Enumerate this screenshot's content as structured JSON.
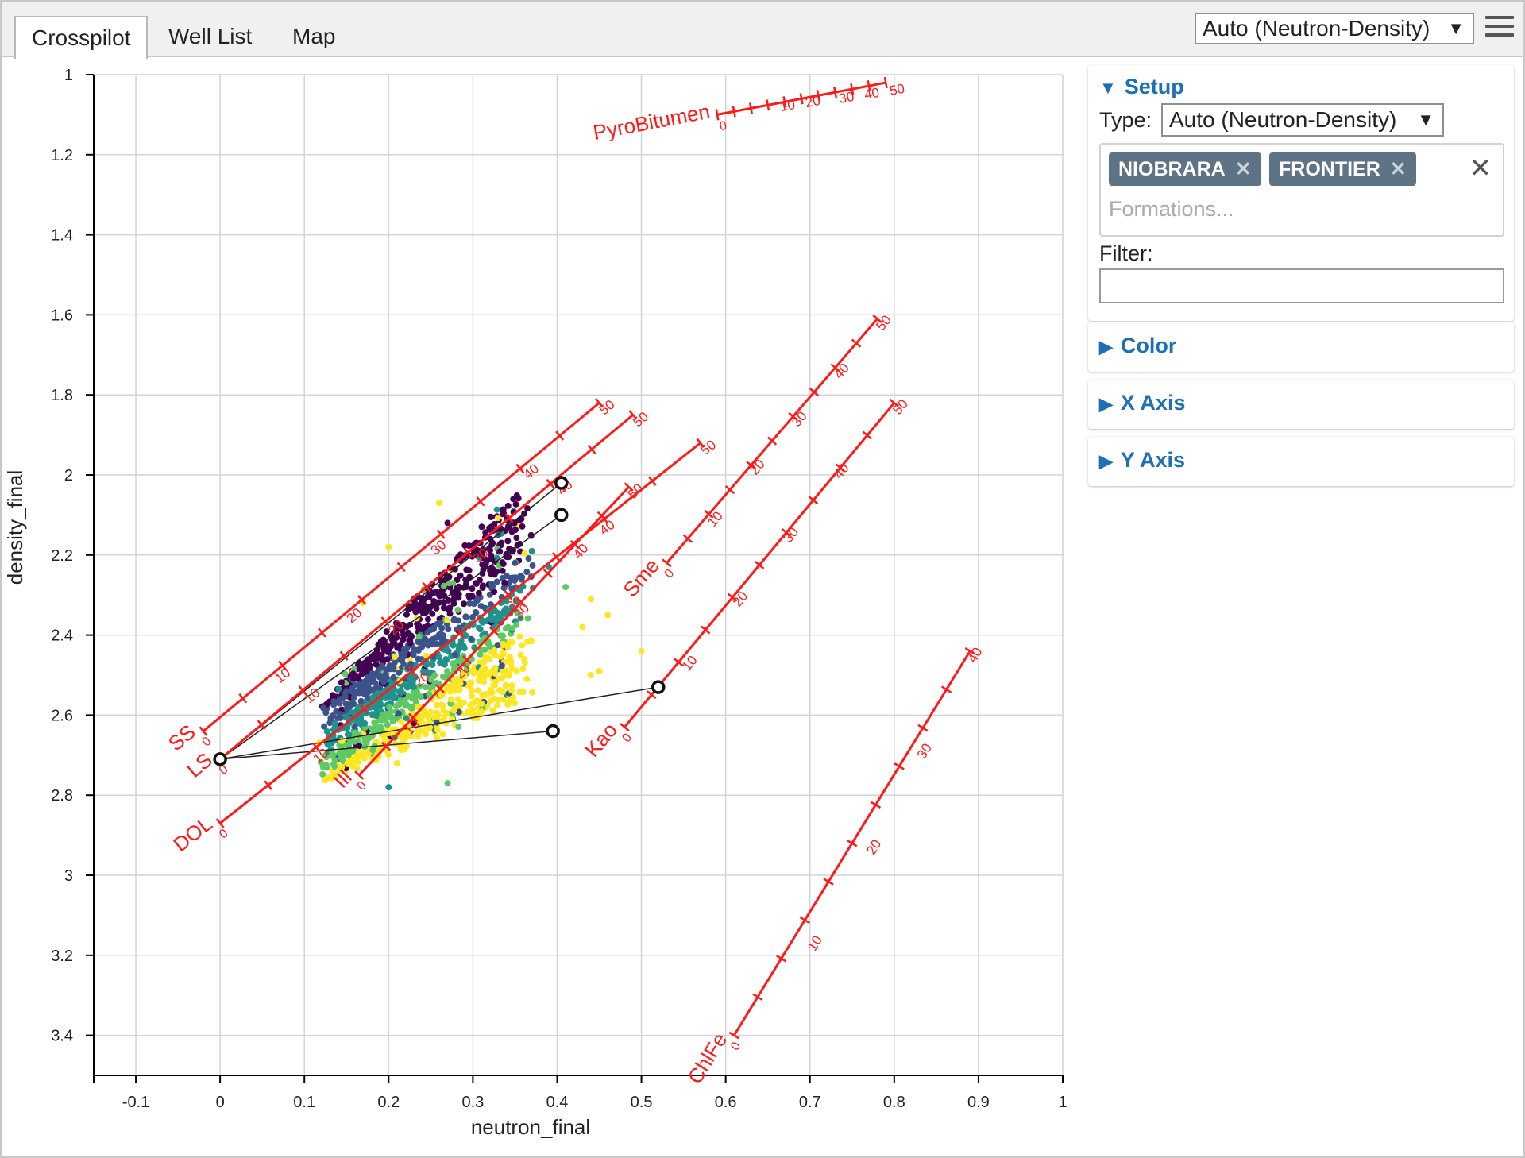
{
  "tabs": [
    {
      "label": "Crosspilot"
    },
    {
      "label": "Well List"
    },
    {
      "label": "Map"
    }
  ],
  "top_select": {
    "value": "Auto (Neutron-Density)"
  },
  "panel": {
    "setup": {
      "title": "Setup",
      "type_label": "Type:",
      "type_value": "Auto (Neutron-Density)",
      "formations": [
        "NIOBRARA",
        "FRONTIER"
      ],
      "formations_placeholder": "Formations...",
      "filter_label": "Filter:",
      "filter_value": ""
    },
    "color": {
      "title": "Color"
    },
    "x_axis": {
      "title": "X Axis"
    },
    "y_axis": {
      "title": "Y Axis"
    }
  },
  "chart_data": {
    "type": "scatter",
    "xlabel": "neutron_final",
    "ylabel": "density_final",
    "xlim": [
      -0.15,
      1.0
    ],
    "ylim": [
      3.5,
      1.0
    ],
    "x_ticks": [
      -0.1,
      0,
      0.1,
      0.2,
      0.3,
      0.4,
      0.5,
      0.6,
      0.7,
      0.8,
      0.9,
      1
    ],
    "x_tick_labels": [
      "-0.1",
      "0",
      "0.1",
      "0.2",
      "0.3",
      "0.4",
      "0.5",
      "0.6",
      "0.7",
      "0.8",
      "0.9",
      "1"
    ],
    "y_ticks": [
      1,
      1.2,
      1.4,
      1.6,
      1.8,
      2,
      2.2,
      2.4,
      2.6,
      2.8,
      3,
      3.2,
      3.4
    ],
    "y_tick_labels": [
      "1",
      "1.2",
      "1.4",
      "1.6",
      "1.8",
      "2",
      "2.2",
      "2.4",
      "2.6",
      "2.8",
      "3",
      "3.2",
      "3.4"
    ],
    "grid": true,
    "lithology_lines": [
      {
        "name": "SS",
        "points": [
          [
            -0.02,
            2.64
          ],
          [
            0.45,
            1.82
          ]
        ],
        "labels": [
          [
            0.065,
            2.49,
            "10"
          ],
          [
            0.15,
            2.34,
            "20"
          ],
          [
            0.25,
            2.17,
            "30"
          ],
          [
            0.36,
            1.98,
            "40"
          ],
          [
            0.45,
            1.82,
            "50"
          ]
        ]
      },
      {
        "name": "LS",
        "points": [
          [
            0.0,
            2.71
          ],
          [
            0.49,
            1.85
          ]
        ],
        "labels": [
          [
            0.1,
            2.54,
            "10"
          ],
          [
            0.2,
            2.37,
            "20"
          ],
          [
            0.3,
            2.19,
            "30"
          ],
          [
            0.4,
            2.02,
            "40"
          ],
          [
            0.49,
            1.85,
            "50"
          ]
        ]
      },
      {
        "name": "DOL",
        "points": [
          [
            0.0,
            2.87
          ],
          [
            0.57,
            1.92
          ]
        ],
        "labels": [
          [
            0.11,
            2.69,
            "10"
          ],
          [
            0.23,
            2.5,
            "20"
          ],
          [
            0.34,
            2.31,
            "30"
          ],
          [
            0.45,
            2.12,
            "40"
          ],
          [
            0.57,
            1.92,
            "50"
          ]
        ]
      },
      {
        "name": "Ill",
        "points": [
          [
            0.165,
            2.75
          ],
          [
            0.485,
            2.03
          ]
        ],
        "labels": [
          [
            0.22,
            2.62,
            "10"
          ],
          [
            0.28,
            2.48,
            "20"
          ],
          [
            0.35,
            2.33,
            "30"
          ],
          [
            0.42,
            2.18,
            "40"
          ],
          [
            0.485,
            2.03,
            "50"
          ]
        ]
      },
      {
        "name": "Sme",
        "points": [
          [
            0.53,
            2.22
          ],
          [
            0.78,
            1.61
          ]
        ],
        "labels": [
          [
            0.58,
            2.1,
            "10"
          ],
          [
            0.63,
            1.97,
            "20"
          ],
          [
            0.68,
            1.85,
            "30"
          ],
          [
            0.73,
            1.73,
            "40"
          ],
          [
            0.78,
            1.61,
            "50"
          ]
        ]
      },
      {
        "name": "Kao",
        "points": [
          [
            0.48,
            2.63
          ],
          [
            0.8,
            1.82
          ]
        ],
        "labels": [
          [
            0.55,
            2.46,
            "10"
          ],
          [
            0.61,
            2.3,
            "20"
          ],
          [
            0.67,
            2.14,
            "30"
          ],
          [
            0.73,
            1.98,
            "40"
          ],
          [
            0.8,
            1.82,
            "50"
          ]
        ]
      },
      {
        "name": "ChlFe",
        "points": [
          [
            0.61,
            3.4
          ],
          [
            0.89,
            2.44
          ]
        ],
        "labels": [
          [
            0.7,
            3.16,
            "10"
          ],
          [
            0.77,
            2.92,
            "20"
          ],
          [
            0.83,
            2.68,
            "30"
          ],
          [
            0.89,
            2.44,
            "40"
          ]
        ]
      },
      {
        "name": "PyroBitumen",
        "points": [
          [
            0.59,
            1.1
          ],
          [
            0.79,
            1.02
          ]
        ],
        "labels": [
          [
            0.66,
            1.06,
            "10"
          ],
          [
            0.69,
            1.05,
            "20"
          ],
          [
            0.73,
            1.04,
            "30"
          ],
          [
            0.76,
            1.03,
            "40"
          ],
          [
            0.79,
            1.02,
            "50"
          ]
        ]
      }
    ],
    "endpoints": [
      [
        0.0,
        2.71
      ],
      [
        0.405,
        2.02
      ],
      [
        0.405,
        2.1
      ],
      [
        0.52,
        2.53
      ],
      [
        0.395,
        2.64
      ]
    ],
    "scatter_colors": [
      "#440154",
      "#3b528b",
      "#21918c",
      "#5ec962",
      "#fde725"
    ]
  },
  "colors": {
    "accent": "#1f6fb5",
    "tag_bg": "#5e7385",
    "overlay": "#ff1a1a"
  }
}
